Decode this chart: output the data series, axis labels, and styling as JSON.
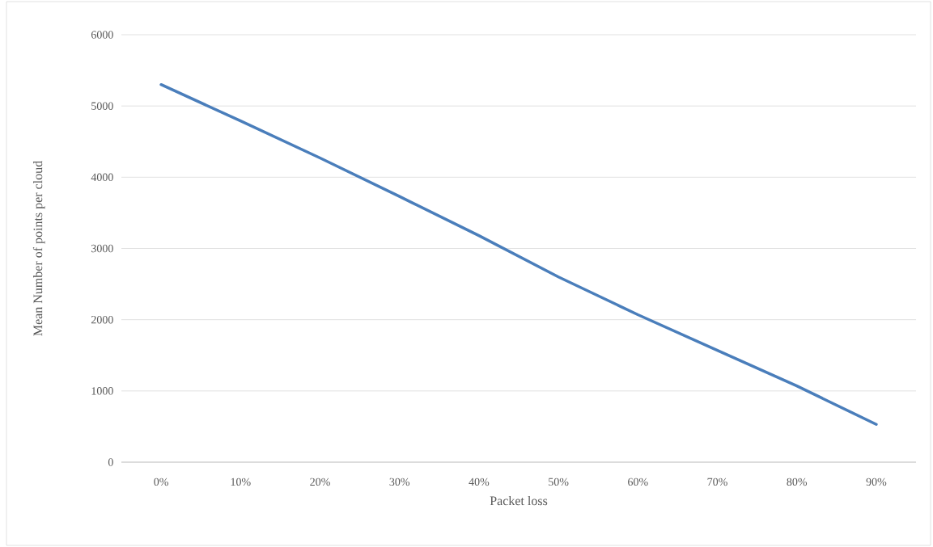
{
  "chart_data": {
    "type": "line",
    "xlabel": "Packet loss",
    "ylabel": "Mean Number of points per cloud",
    "categories": [
      "0%",
      "10%",
      "20%",
      "30%",
      "40%",
      "50%",
      "60%",
      "70%",
      "80%",
      "90%"
    ],
    "values": [
      5300,
      4790,
      4270,
      3730,
      3180,
      2600,
      2070,
      1570,
      1070,
      530
    ],
    "color": "#4a7ebb",
    "ylim": [
      0,
      6000
    ],
    "yticks": [
      0,
      1000,
      2000,
      3000,
      4000,
      5000,
      6000
    ],
    "grid": "y",
    "legend": false,
    "marker": "none",
    "line_style": "solid"
  }
}
